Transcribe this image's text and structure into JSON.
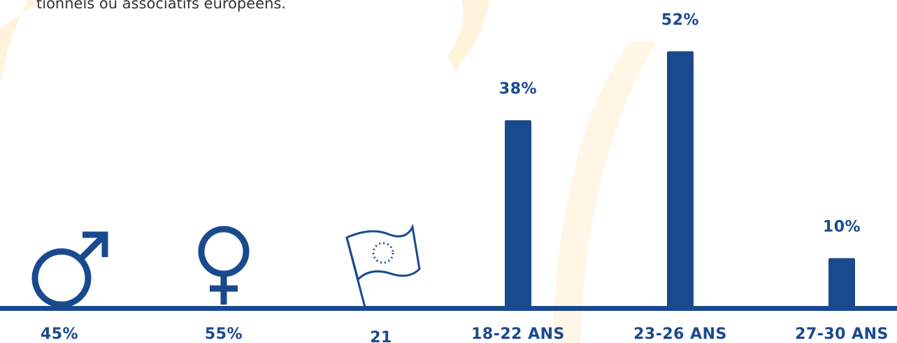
{
  "intro": "tionnels ou associatifs européens.",
  "stats": [
    {
      "label": "45%"
    },
    {
      "label": "55%"
    },
    {
      "label": "21"
    }
  ],
  "chart_data": {
    "type": "bar",
    "categories": [
      "18-22 ANS",
      "23-26 ANS",
      "27-30 ANS"
    ],
    "values": [
      38,
      52,
      10
    ],
    "value_labels": [
      "38%",
      "52%",
      "10%"
    ],
    "color": "#1a4a8e"
  }
}
